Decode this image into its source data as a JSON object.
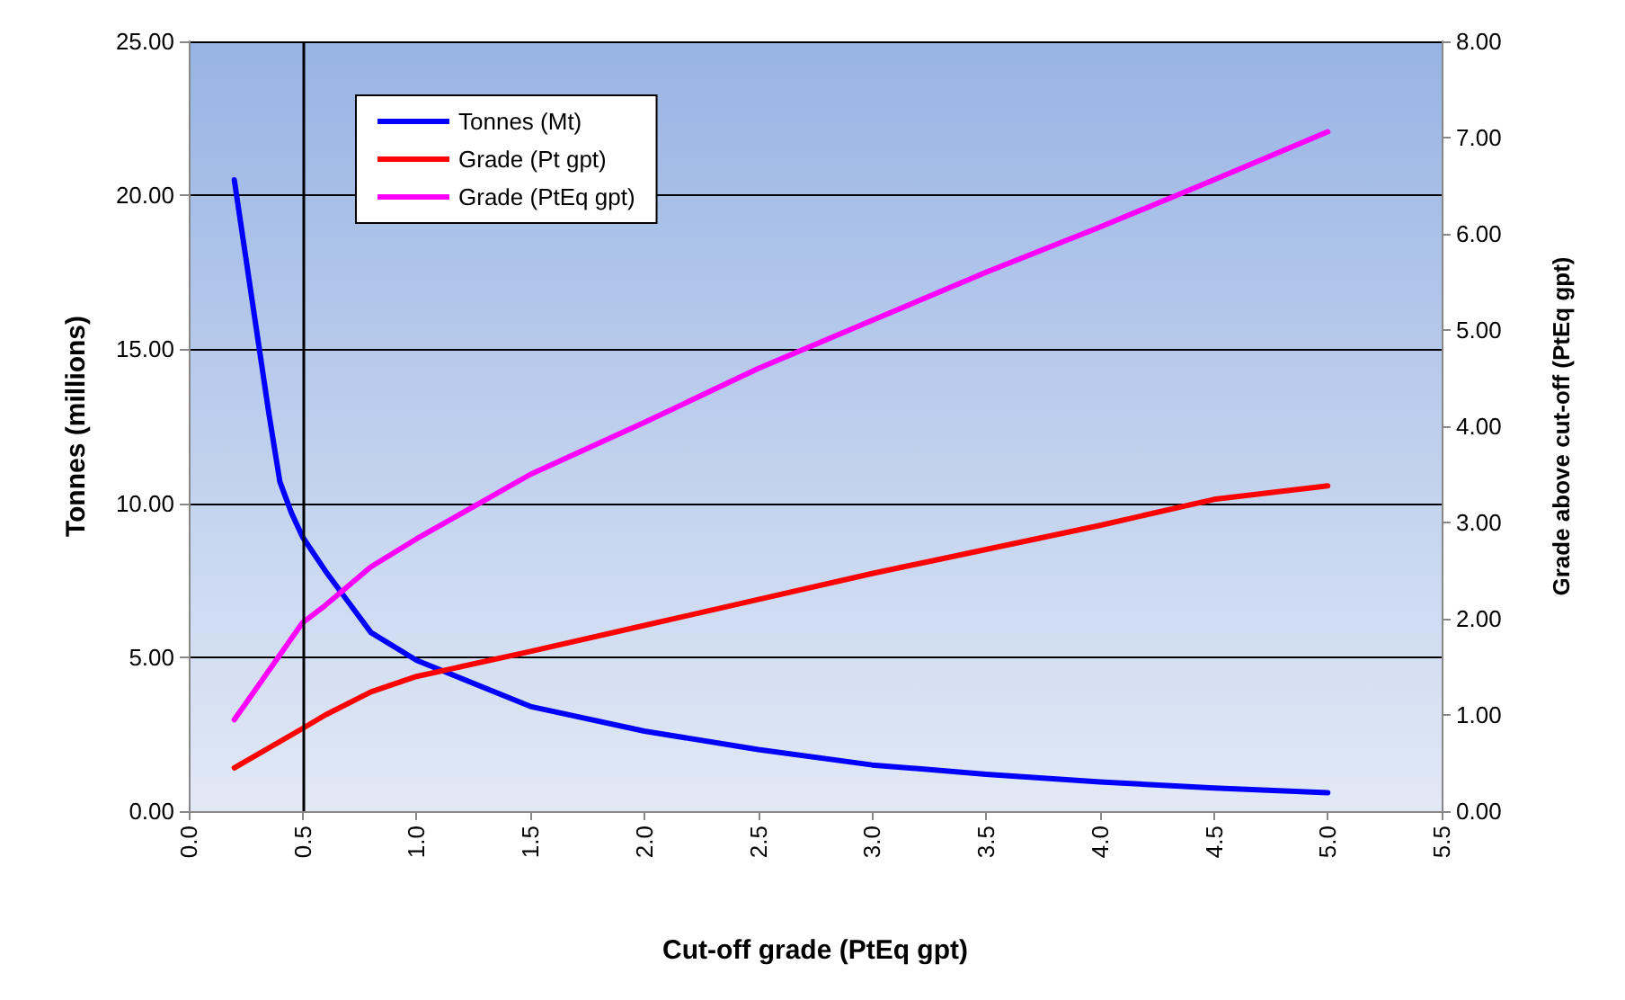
{
  "chart_data": {
    "type": "line",
    "xlabel": "Cut-off grade (PtEq gpt)",
    "ylabel": "Tonnes (millions)",
    "y2label": "Grade above cut-off (PtEq gpt)",
    "xlim": [
      0,
      5.5
    ],
    "xticks": [
      {
        "value": 0,
        "label": "0.0"
      },
      {
        "value": 0.5,
        "label": "0.5"
      },
      {
        "value": 1,
        "label": "1.0"
      },
      {
        "value": 1.5,
        "label": "1.5"
      },
      {
        "value": 2,
        "label": "2.0"
      },
      {
        "value": 2.5,
        "label": "2.5"
      },
      {
        "value": 3,
        "label": "3.0"
      },
      {
        "value": 3.5,
        "label": "3.5"
      },
      {
        "value": 4,
        "label": "4.0"
      },
      {
        "value": 4.5,
        "label": "4.5"
      },
      {
        "value": 5,
        "label": "5.0"
      },
      {
        "value": 5.5,
        "label": "5.5"
      }
    ],
    "ylim": [
      0,
      25
    ],
    "yticks": [
      {
        "value": 0,
        "label": "0.00"
      },
      {
        "value": 5,
        "label": "5.00"
      },
      {
        "value": 10,
        "label": "10.00"
      },
      {
        "value": 15,
        "label": "15.00"
      },
      {
        "value": 20,
        "label": "20.00"
      },
      {
        "value": 25,
        "label": "25.00"
      }
    ],
    "y2lim": [
      0,
      8
    ],
    "y2ticks": [
      {
        "value": 0,
        "label": "0.00"
      },
      {
        "value": 1,
        "label": "1.00"
      },
      {
        "value": 2,
        "label": "2.00"
      },
      {
        "value": 3,
        "label": "3.00"
      },
      {
        "value": 4,
        "label": "4.00"
      },
      {
        "value": 5,
        "label": "5.00"
      },
      {
        "value": 6,
        "label": "6.00"
      },
      {
        "value": 7,
        "label": "7.00"
      },
      {
        "value": 8,
        "label": "8.00"
      }
    ],
    "grid": "y",
    "legend": "top left",
    "marker": "none",
    "line_style": "solid",
    "ref_lines": [
      {
        "axis": "x",
        "value": 0.5,
        "color": "#000000"
      }
    ],
    "series": [
      {
        "name": "Tonnes (Mt)",
        "color": "#0000ff",
        "x": [
          0.2,
          0.25,
          0.3,
          0.35,
          0.4,
          0.45,
          0.5,
          0.6,
          0.7,
          0.8,
          1.0,
          1.5,
          2.0,
          2.5,
          3.0,
          3.5,
          4.0,
          4.5,
          5.0
        ],
        "values": [
          20.5,
          18,
          15.5,
          13,
          10.7,
          9.7,
          8.9,
          7.8,
          6.8,
          5.8,
          4.9,
          3.4,
          2.6,
          2.0,
          1.5,
          1.2,
          0.95,
          0.75,
          0.6
        ]
      },
      {
        "name": "Grade (Pt gpt)",
        "color": "#ff0000",
        "axis": "y2",
        "x": [
          0.2,
          0.5,
          0.6,
          0.8,
          1.0,
          1.5,
          2.0,
          2.5,
          3.0,
          3.5,
          4.0,
          4.5,
          5.0
        ],
        "values": [
          0.45,
          0.86,
          1.0,
          1.24,
          1.4,
          1.66,
          1.93,
          2.2,
          2.47,
          2.72,
          2.97,
          3.24,
          3.38
        ]
      },
      {
        "name": "Grade (PtEq gpt)",
        "color": "#ff00ff",
        "axis": "y2",
        "x": [
          0.2,
          0.5,
          0.6,
          0.8,
          1.0,
          1.5,
          2.0,
          2.5,
          3.0,
          3.5,
          4.0,
          4.5,
          5.0
        ],
        "values": [
          0.95,
          1.96,
          2.14,
          2.54,
          2.83,
          3.5,
          4.04,
          4.6,
          5.1,
          5.6,
          6.07,
          6.56,
          7.06
        ]
      }
    ]
  }
}
